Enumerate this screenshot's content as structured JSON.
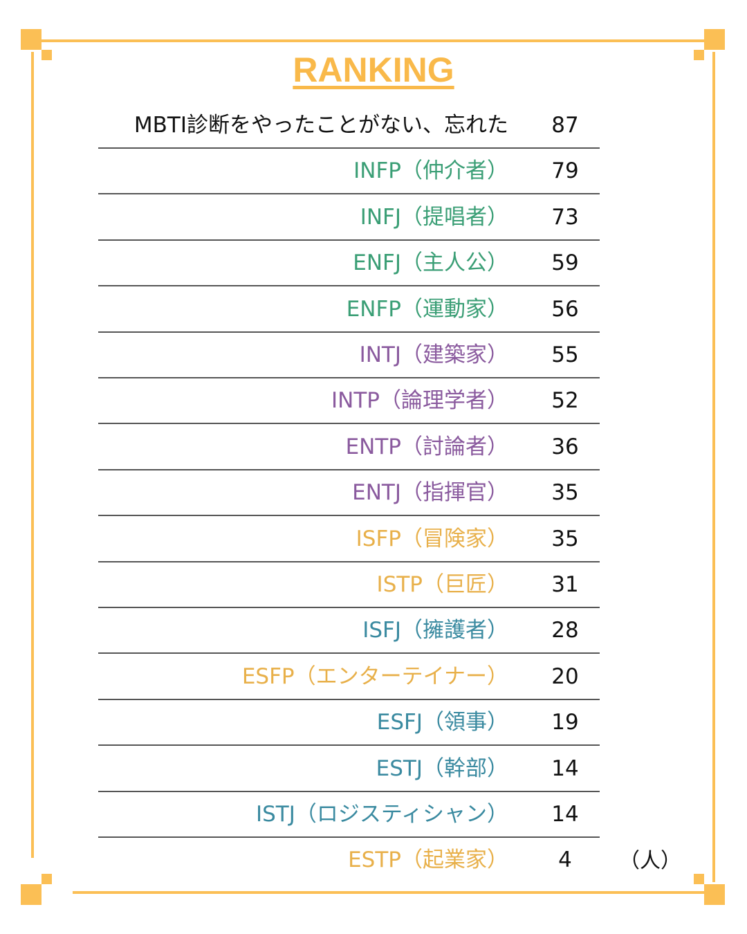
{
  "title": "RANKING",
  "unit": "（人）",
  "rows": [
    {
      "label": "MBTI診断をやったことがない、忘れた",
      "value": 87,
      "color": "#111111"
    },
    {
      "label": "INFP（仲介者）",
      "value": 79,
      "color": "#3a9e75"
    },
    {
      "label": "INFJ（提唱者）",
      "value": 73,
      "color": "#3a9e75"
    },
    {
      "label": "ENFJ（主人公）",
      "value": 59,
      "color": "#3a9e75"
    },
    {
      "label": "ENFP（運動家）",
      "value": 56,
      "color": "#3a9e75"
    },
    {
      "label": "INTJ（建築家）",
      "value": 55,
      "color": "#8a5a9e"
    },
    {
      "label": "INTP（論理学者）",
      "value": 52,
      "color": "#8a5a9e"
    },
    {
      "label": "ENTP（討論者）",
      "value": 36,
      "color": "#8a5a9e"
    },
    {
      "label": "ENTJ（指揮官）",
      "value": 35,
      "color": "#8a5a9e"
    },
    {
      "label": "ISFP（冒険家）",
      "value": 35,
      "color": "#e8b04a"
    },
    {
      "label": "ISTP（巨匠）",
      "value": 31,
      "color": "#e8b04a"
    },
    {
      "label": "ISFJ（擁護者）",
      "value": 28,
      "color": "#3a8aa0"
    },
    {
      "label": "ESFP（エンターテイナー）",
      "value": 20,
      "color": "#e8b04a"
    },
    {
      "label": "ESFJ（領事）",
      "value": 19,
      "color": "#3a8aa0"
    },
    {
      "label": "ESTJ（幹部）",
      "value": 14,
      "color": "#3a8aa0"
    },
    {
      "label": "ISTJ（ロジスティシャン）",
      "value": 14,
      "color": "#3a8aa0"
    },
    {
      "label": "ESTP（起業家）",
      "value": 4,
      "color": "#e8b04a"
    }
  ]
}
